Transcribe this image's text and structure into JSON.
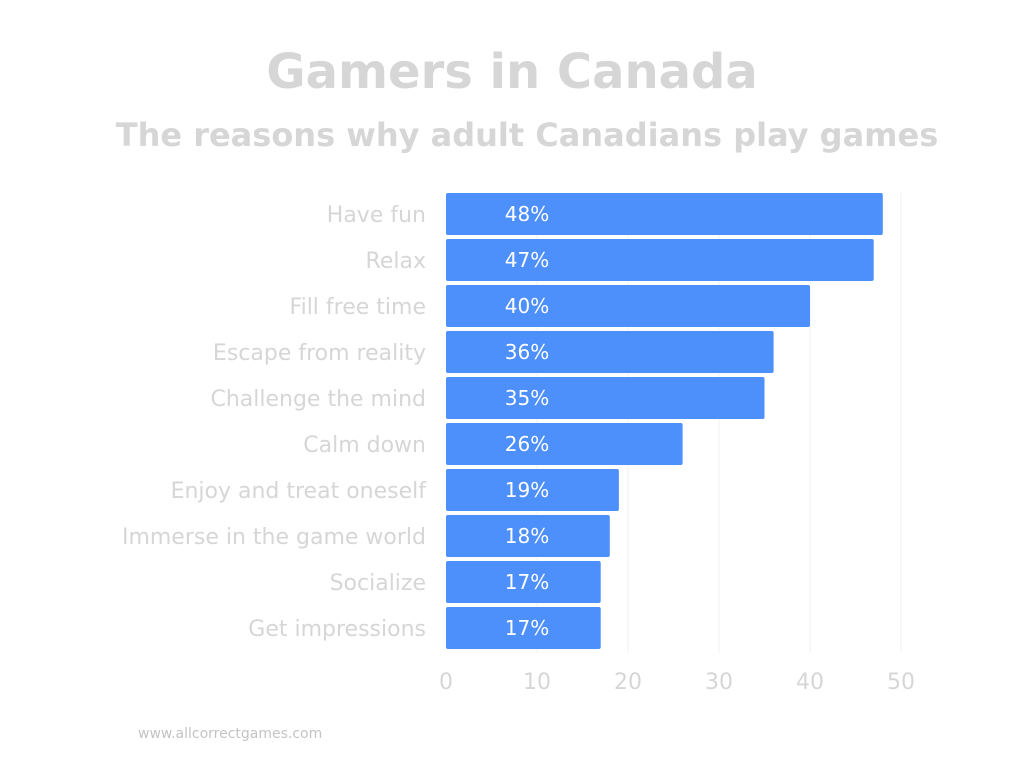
{
  "chart_data": {
    "type": "bar",
    "orientation": "horizontal",
    "title": "Gamers in Canada",
    "subtitle": "The reasons why adult Canadians play games",
    "categories": [
      "Have fun",
      "Relax",
      "Fill free time",
      "Escape from reality",
      "Challenge the mind",
      "Calm down",
      "Enjoy and treat oneself",
      "Immerse in the game world",
      "Socialize",
      "Get impressions"
    ],
    "values": [
      48,
      47,
      40,
      36,
      35,
      26,
      19,
      18,
      17,
      17
    ],
    "data_labels": [
      "48%",
      "47%",
      "40%",
      "36%",
      "35%",
      "26%",
      "19%",
      "18%",
      "17%",
      "17%"
    ],
    "x_ticks": [
      "0",
      "10",
      "20",
      "30",
      "40",
      "50"
    ],
    "x_tick_values": [
      0,
      10,
      20,
      30,
      40,
      50
    ],
    "xlim": [
      0,
      50
    ],
    "grid": true,
    "bar_color": "#4d8ffb",
    "text_color": "#d6d6d6"
  },
  "source": "www.allcorrectgames.com"
}
